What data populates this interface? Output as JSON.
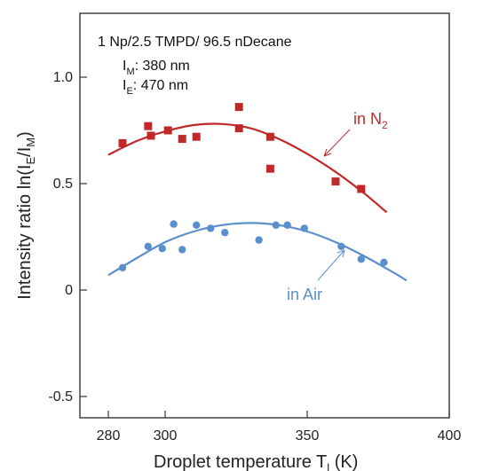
{
  "chart_data": {
    "type": "scatter",
    "xlabel": {
      "text": "Droplet temperature T",
      "sub": "l",
      "tail": " (K)"
    },
    "ylabel": {
      "parts": [
        "Intensity ratio ln(I",
        "E",
        "/I",
        "M",
        ")"
      ]
    },
    "xlim": [
      270,
      400
    ],
    "ylim": [
      -0.6,
      1.3
    ],
    "x_ticks": [
      280,
      300,
      350,
      400
    ],
    "y_ticks": [
      -0.5,
      0,
      0.5,
      1.0
    ],
    "x_tick_labels": [
      "280",
      "300",
      "350",
      "400"
    ],
    "y_tick_labels": [
      "-0.5",
      "0",
      "0.5",
      "1.0"
    ],
    "grid": false,
    "annotations": {
      "composition": "1 Np/2.5 TMPD/ 96.5 nDecane",
      "im": {
        "main": "I",
        "sub": "M",
        "tail": ": 380 nm"
      },
      "ie": {
        "main": "I",
        "sub": "E",
        "tail": ": 470 nm"
      }
    },
    "colors": {
      "n2": "#c0282a",
      "air": "#5a8fcc"
    },
    "series": [
      {
        "name": "in N2",
        "label": {
          "main": "in N",
          "sub": "2"
        },
        "marker": "square",
        "points": [
          [
            285,
            0.69
          ],
          [
            294,
            0.77
          ],
          [
            295,
            0.725
          ],
          [
            301,
            0.75
          ],
          [
            306,
            0.71
          ],
          [
            311,
            0.72
          ],
          [
            326,
            0.86
          ],
          [
            326,
            0.76
          ],
          [
            337,
            0.72
          ],
          [
            337,
            0.57
          ],
          [
            360,
            0.51
          ],
          [
            369,
            0.475
          ]
        ],
        "fit": [
          [
            280,
            0.635
          ],
          [
            290,
            0.7
          ],
          [
            300,
            0.745
          ],
          [
            310,
            0.775
          ],
          [
            320,
            0.78
          ],
          [
            330,
            0.76
          ],
          [
            340,
            0.71
          ],
          [
            350,
            0.64
          ],
          [
            360,
            0.555
          ],
          [
            370,
            0.455
          ],
          [
            378,
            0.365
          ]
        ]
      },
      {
        "name": "in Air",
        "label": {
          "main": "in Air",
          "sub": ""
        },
        "marker": "circle",
        "points": [
          [
            285,
            0.105
          ],
          [
            294,
            0.205
          ],
          [
            299,
            0.195
          ],
          [
            303,
            0.31
          ],
          [
            306,
            0.19
          ],
          [
            311,
            0.305
          ],
          [
            316,
            0.29
          ],
          [
            321,
            0.27
          ],
          [
            333,
            0.235
          ],
          [
            339,
            0.305
          ],
          [
            343,
            0.305
          ],
          [
            349,
            0.29
          ],
          [
            362,
            0.205
          ],
          [
            369,
            0.145
          ],
          [
            377,
            0.13
          ]
        ],
        "fit": [
          [
            280,
            0.07
          ],
          [
            290,
            0.15
          ],
          [
            300,
            0.225
          ],
          [
            310,
            0.275
          ],
          [
            320,
            0.305
          ],
          [
            330,
            0.315
          ],
          [
            340,
            0.305
          ],
          [
            350,
            0.275
          ],
          [
            360,
            0.225
          ],
          [
            370,
            0.16
          ],
          [
            380,
            0.085
          ],
          [
            385,
            0.045
          ]
        ]
      }
    ]
  }
}
